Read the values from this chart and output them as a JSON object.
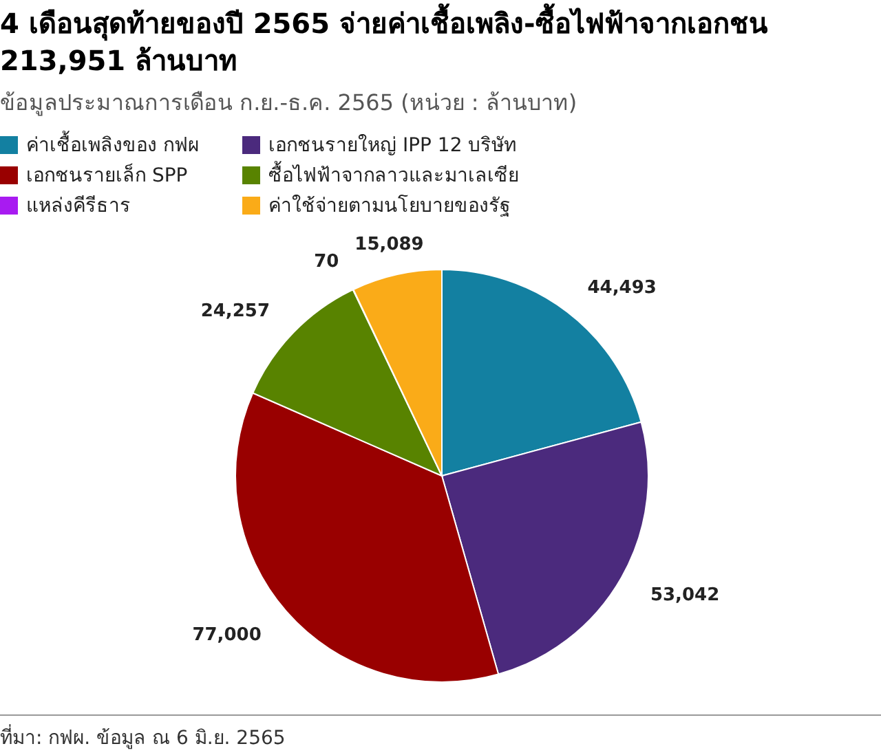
{
  "chart_data": {
    "type": "pie",
    "title": "4 เดือนสุดท้ายของปี 2565 จ่ายค่าเชื้อเพลิง-ซื้อไฟฟ้าจากเอกชน 213,951 ล้านบาท",
    "subtitle": "ข้อมูลประมาณการเดือน ก.ย.-ธ.ค. 2565 (หน่วย : ล้านบาท)",
    "categories": [
      "ค่าเชื้อเพลิงของ กฟผ",
      "เอกชนรายใหญ่ IPP 12 บริษัท",
      "เอกชนรายเล็ก SPP",
      "ซื้อไฟฟ้าจากลาวและมาเลเซีย",
      "แหล่งคีรีธาร",
      "ค่าใช้จ่ายตามนโยบายของรัฐ"
    ],
    "values": [
      44493,
      53042,
      77000,
      24257,
      70,
      15089
    ],
    "value_labels": [
      "44,493",
      "53,042",
      "77,000",
      "24,257",
      "70",
      "15,089"
    ],
    "colors": [
      "#1380a1",
      "#4b2a7d",
      "#990000",
      "#588300",
      "#a81bf1",
      "#faab18"
    ],
    "legend": "top",
    "annotations": [
      "ที่มา: กฟผ. ข้อมูล ณ 6 มิ.ย. 2565"
    ]
  }
}
